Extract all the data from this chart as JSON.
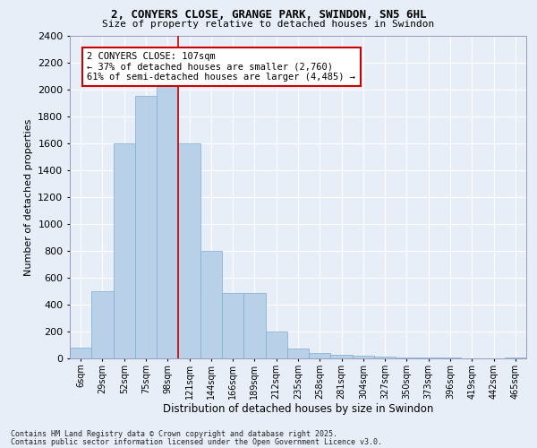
{
  "title": "2, CONYERS CLOSE, GRANGE PARK, SWINDON, SN5 6HL",
  "subtitle": "Size of property relative to detached houses in Swindon",
  "xlabel": "Distribution of detached houses by size in Swindon",
  "ylabel": "Number of detached properties",
  "bar_color": "#b8d0e8",
  "bar_edge_color": "#7aaed0",
  "bg_color": "#e8eef8",
  "grid_color": "#ffffff",
  "annotation_line_color": "#cc0000",
  "annotation_box_color": "#cc0000",
  "annotation_text": "2 CONYERS CLOSE: 107sqm\n← 37% of detached houses are smaller (2,760)\n61% of semi-detached houses are larger (4,485) →",
  "property_size": 107,
  "categories": [
    "6sqm",
    "29sqm",
    "52sqm",
    "75sqm",
    "98sqm",
    "121sqm",
    "144sqm",
    "166sqm",
    "189sqm",
    "212sqm",
    "235sqm",
    "258sqm",
    "281sqm",
    "304sqm",
    "327sqm",
    "350sqm",
    "373sqm",
    "396sqm",
    "419sqm",
    "442sqm",
    "465sqm"
  ],
  "values": [
    80,
    500,
    1600,
    1950,
    2050,
    1600,
    800,
    490,
    490,
    200,
    75,
    40,
    30,
    20,
    15,
    10,
    5,
    5,
    3,
    3,
    5
  ],
  "ylim": [
    0,
    2400
  ],
  "yticks": [
    0,
    200,
    400,
    600,
    800,
    1000,
    1200,
    1400,
    1600,
    1800,
    2000,
    2200,
    2400
  ],
  "property_bin_index": 4,
  "footnote1": "Contains HM Land Registry data © Crown copyright and database right 2025.",
  "footnote2": "Contains public sector information licensed under the Open Government Licence v3.0."
}
